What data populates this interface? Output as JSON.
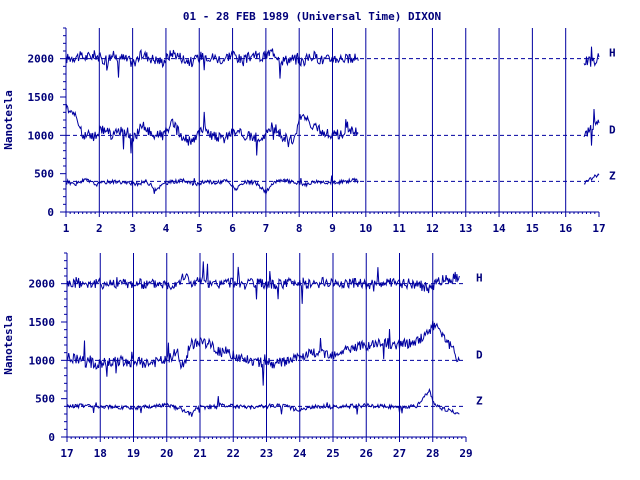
{
  "title": "01 - 28 FEB 1989 (Universal Time) DIXON",
  "colors": {
    "trace": "#0000a0",
    "axis": "#0000a0",
    "text": "#00007a",
    "background": "#ffffff"
  },
  "chart_data": [
    {
      "type": "line",
      "ylabel": "Nanotesla",
      "xlim": [
        1,
        17
      ],
      "ylim": [
        0,
        2400
      ],
      "x_ticks": [
        "1",
        "2",
        "3",
        "4",
        "5",
        "6",
        "7",
        "8",
        "9",
        "10",
        "11",
        "12",
        "13",
        "14",
        "15",
        "16",
        "17"
      ],
      "y_ticks": [
        "0",
        "500",
        "1000",
        "1500",
        "2000"
      ],
      "reference_lines": [
        {
          "label": "H",
          "value": 2000
        },
        {
          "label": "D",
          "value": 1000
        },
        {
          "label": "Z",
          "value": 400
        }
      ],
      "data_gap": [
        9.8,
        16.55
      ],
      "series": [
        {
          "name": "H",
          "x": [
            1.0,
            1.3,
            1.6,
            1.9,
            2.1,
            2.4,
            2.7,
            3.0,
            3.3,
            3.6,
            3.9,
            4.2,
            4.5,
            4.8,
            5.1,
            5.4,
            5.7,
            6.0,
            6.3,
            6.6,
            6.9,
            7.2,
            7.5,
            7.8,
            8.1,
            8.4,
            8.7,
            9.0,
            9.3,
            9.6,
            9.8,
            16.55,
            16.8,
            17.0
          ],
          "y": [
            2000,
            2030,
            2020,
            2050,
            1980,
            2040,
            2010,
            1950,
            2060,
            2000,
            1960,
            2080,
            2010,
            1950,
            2050,
            2020,
            1990,
            2070,
            1960,
            2050,
            2010,
            2100,
            1980,
            2000,
            1960,
            2040,
            1980,
            2000,
            2010,
            1980,
            2020,
            1980,
            1950,
            2020
          ]
        },
        {
          "name": "D",
          "x": [
            1.0,
            1.2,
            1.5,
            1.8,
            2.1,
            2.4,
            2.7,
            3.0,
            3.3,
            3.6,
            3.9,
            4.2,
            4.5,
            4.8,
            5.1,
            5.4,
            5.7,
            6.0,
            6.3,
            6.6,
            6.9,
            7.2,
            7.5,
            7.8,
            8.1,
            8.4,
            8.7,
            9.0,
            9.3,
            9.6,
            9.8,
            16.55,
            16.8,
            17.0
          ],
          "y": [
            1380,
            1320,
            1020,
            980,
            1080,
            1000,
            1060,
            960,
            1120,
            1010,
            1000,
            1150,
            960,
            900,
            1100,
            1000,
            950,
            1050,
            1020,
            960,
            1000,
            1120,
            980,
            950,
            1250,
            1100,
            1050,
            1000,
            1020,
            1050,
            1080,
            1000,
            1100,
            1160
          ]
        },
        {
          "name": "Z",
          "x": [
            1.0,
            1.3,
            1.6,
            1.9,
            2.2,
            2.5,
            2.8,
            3.1,
            3.4,
            3.7,
            4.0,
            4.3,
            4.6,
            4.9,
            5.2,
            5.5,
            5.8,
            6.1,
            6.4,
            6.7,
            7.0,
            7.3,
            7.6,
            7.9,
            8.2,
            8.5,
            8.8,
            9.1,
            9.4,
            9.7,
            9.8,
            16.55,
            16.8,
            17.0
          ],
          "y": [
            380,
            370,
            420,
            360,
            390,
            400,
            380,
            360,
            400,
            300,
            380,
            400,
            410,
            350,
            400,
            380,
            410,
            300,
            390,
            380,
            260,
            400,
            410,
            380,
            360,
            400,
            390,
            380,
            400,
            420,
            400,
            380,
            450,
            480
          ]
        }
      ]
    },
    {
      "type": "line",
      "ylabel": "Nanotesla",
      "xlim": [
        17,
        29
      ],
      "ylim": [
        0,
        2400
      ],
      "x_ticks": [
        "17",
        "18",
        "19",
        "20",
        "21",
        "22",
        "23",
        "24",
        "25",
        "26",
        "27",
        "28",
        "29"
      ],
      "y_ticks": [
        "0",
        "500",
        "1000",
        "1500",
        "2000"
      ],
      "reference_lines": [
        {
          "label": "H",
          "value": 2000
        },
        {
          "label": "D",
          "value": 1000
        },
        {
          "label": "Z",
          "value": 400
        }
      ],
      "data_gap": [
        28.1,
        28.8
      ],
      "series": [
        {
          "name": "H",
          "x": [
            17.0,
            17.4,
            17.8,
            18.2,
            18.6,
            19.0,
            19.4,
            19.8,
            20.1,
            20.4,
            20.6,
            20.8,
            21.0,
            21.3,
            21.6,
            22.0,
            22.4,
            22.8,
            23.2,
            23.6,
            24.0,
            24.4,
            24.8,
            25.2,
            25.6,
            26.0,
            26.4,
            26.8,
            27.2,
            27.6,
            27.9,
            28.1,
            28.8
          ],
          "y": [
            2000,
            2010,
            2000,
            2000,
            2010,
            2000,
            1990,
            2010,
            1980,
            2050,
            2100,
            1980,
            2060,
            1980,
            2000,
            2020,
            1990,
            2000,
            1980,
            2010,
            2020,
            1990,
            2020,
            2000,
            2010,
            1990,
            2010,
            2000,
            2010,
            1990,
            1920,
            2020,
            2100
          ]
        },
        {
          "name": "D",
          "x": [
            17.0,
            17.5,
            18.0,
            18.5,
            19.0,
            19.5,
            20.0,
            20.3,
            20.5,
            20.7,
            21.0,
            21.3,
            21.6,
            22.0,
            22.5,
            23.0,
            23.5,
            24.0,
            24.5,
            25.0,
            25.5,
            26.0,
            26.5,
            27.0,
            27.5,
            27.8,
            28.0,
            28.1,
            28.8
          ],
          "y": [
            1050,
            980,
            950,
            1000,
            980,
            960,
            1000,
            1100,
            900,
            1200,
            1250,
            1200,
            1100,
            1080,
            1000,
            960,
            970,
            1050,
            1100,
            1080,
            1150,
            1200,
            1230,
            1200,
            1250,
            1350,
            1450,
            1480,
            1000
          ]
        },
        {
          "name": "Z",
          "x": [
            17.0,
            17.5,
            18.0,
            18.5,
            19.0,
            19.5,
            20.0,
            20.3,
            20.5,
            20.7,
            21.0,
            21.3,
            21.6,
            22.0,
            22.5,
            23.0,
            23.5,
            24.0,
            24.5,
            25.0,
            25.5,
            26.0,
            26.5,
            27.0,
            27.5,
            27.9,
            28.0,
            28.1,
            28.8
          ],
          "y": [
            400,
            410,
            400,
            390,
            380,
            400,
            420,
            380,
            350,
            300,
            400,
            380,
            420,
            400,
            390,
            400,
            410,
            350,
            400,
            390,
            400,
            410,
            400,
            390,
            400,
            600,
            480,
            400,
            300
          ]
        }
      ]
    }
  ]
}
